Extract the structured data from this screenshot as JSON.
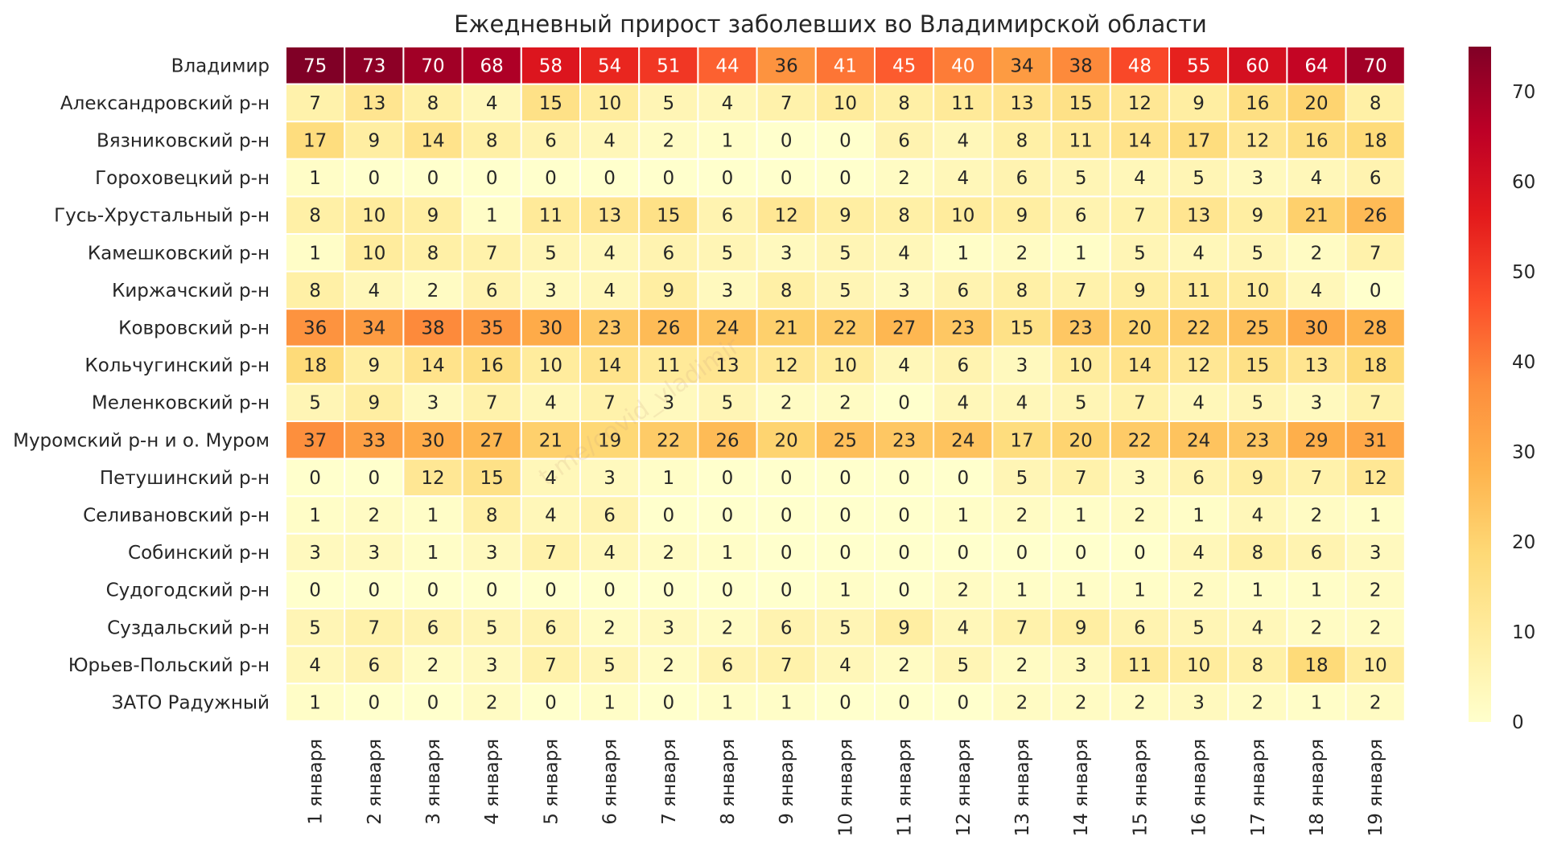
{
  "chart_data": {
    "type": "heatmap",
    "title": "Ежедневный прирост заболевших во Владимирской области",
    "watermark": "t.me/covid_vladimir",
    "xlabel": "",
    "ylabel": "",
    "colormap": "YlOrRd",
    "vmin": 0,
    "vmax": 75,
    "colorbar_ticks": [
      0,
      10,
      20,
      30,
      40,
      50,
      60,
      70
    ],
    "colorbar_position": "right",
    "x": [
      "1 января",
      "2 января",
      "3 января",
      "4 января",
      "5 января",
      "6 января",
      "7 января",
      "8 января",
      "9 января",
      "10 января",
      "11 января",
      "12 января",
      "13 января",
      "14 января",
      "15 января",
      "16 января",
      "17 января",
      "18 января",
      "19 января"
    ],
    "y": [
      "Владимир",
      "Александровский р-н",
      "Вязниковский р-н",
      "Гороховецкий р-н",
      "Гусь-Хрустальный р-н",
      "Камешковский р-н",
      "Киржачский р-н",
      "Ковровский р-н",
      "Кольчугинский р-н",
      "Меленковский р-н",
      "Муромский р-н и о. Муром",
      "Петушинский р-н",
      "Селивановский р-н",
      "Собинский р-н",
      "Судогодский р-н",
      "Суздальский р-н",
      "Юрьев-Польский р-н",
      "ЗАТО Радужный"
    ],
    "values": [
      [
        75,
        73,
        70,
        68,
        58,
        54,
        51,
        44,
        36,
        41,
        45,
        40,
        34,
        38,
        48,
        55,
        60,
        64,
        70
      ],
      [
        7,
        13,
        8,
        4,
        15,
        10,
        5,
        4,
        7,
        10,
        8,
        11,
        13,
        15,
        12,
        9,
        16,
        20,
        8
      ],
      [
        17,
        9,
        14,
        8,
        6,
        4,
        2,
        1,
        0,
        0,
        6,
        4,
        8,
        11,
        14,
        17,
        12,
        16,
        18
      ],
      [
        1,
        0,
        0,
        0,
        0,
        0,
        0,
        0,
        0,
        0,
        2,
        4,
        6,
        5,
        4,
        5,
        3,
        4,
        6
      ],
      [
        8,
        10,
        9,
        1,
        11,
        13,
        15,
        6,
        12,
        9,
        8,
        10,
        9,
        6,
        7,
        13,
        9,
        21,
        26
      ],
      [
        1,
        10,
        8,
        7,
        5,
        4,
        6,
        5,
        3,
        5,
        4,
        1,
        2,
        1,
        5,
        4,
        5,
        2,
        7
      ],
      [
        8,
        4,
        2,
        6,
        3,
        4,
        9,
        3,
        8,
        5,
        3,
        6,
        8,
        7,
        9,
        11,
        10,
        4,
        0
      ],
      [
        36,
        34,
        38,
        35,
        30,
        23,
        26,
        24,
        21,
        22,
        27,
        23,
        15,
        23,
        20,
        22,
        25,
        30,
        28
      ],
      [
        18,
        9,
        14,
        16,
        10,
        14,
        11,
        13,
        12,
        10,
        4,
        6,
        3,
        10,
        14,
        12,
        15,
        13,
        18
      ],
      [
        5,
        9,
        3,
        7,
        4,
        7,
        3,
        5,
        2,
        2,
        0,
        4,
        4,
        5,
        7,
        4,
        5,
        3,
        7
      ],
      [
        37,
        33,
        30,
        27,
        21,
        19,
        22,
        26,
        20,
        25,
        23,
        24,
        17,
        20,
        22,
        24,
        23,
        29,
        31
      ],
      [
        0,
        0,
        12,
        15,
        4,
        3,
        1,
        0,
        0,
        0,
        0,
        0,
        5,
        7,
        3,
        6,
        9,
        7,
        12
      ],
      [
        1,
        2,
        1,
        8,
        4,
        6,
        0,
        0,
        0,
        0,
        0,
        1,
        2,
        1,
        2,
        1,
        4,
        2,
        1
      ],
      [
        3,
        3,
        1,
        3,
        7,
        4,
        2,
        1,
        0,
        0,
        0,
        0,
        0,
        0,
        0,
        4,
        8,
        6,
        3
      ],
      [
        0,
        0,
        0,
        0,
        0,
        0,
        0,
        0,
        0,
        1,
        0,
        2,
        1,
        1,
        1,
        2,
        1,
        1,
        2
      ],
      [
        5,
        7,
        6,
        5,
        6,
        2,
        3,
        2,
        6,
        5,
        9,
        4,
        7,
        9,
        6,
        5,
        4,
        2,
        2
      ],
      [
        4,
        6,
        2,
        3,
        7,
        5,
        2,
        6,
        7,
        4,
        2,
        5,
        2,
        3,
        11,
        10,
        8,
        18,
        10
      ],
      [
        1,
        0,
        0,
        2,
        0,
        1,
        0,
        1,
        1,
        0,
        0,
        0,
        2,
        2,
        2,
        3,
        2,
        1,
        2
      ]
    ]
  }
}
